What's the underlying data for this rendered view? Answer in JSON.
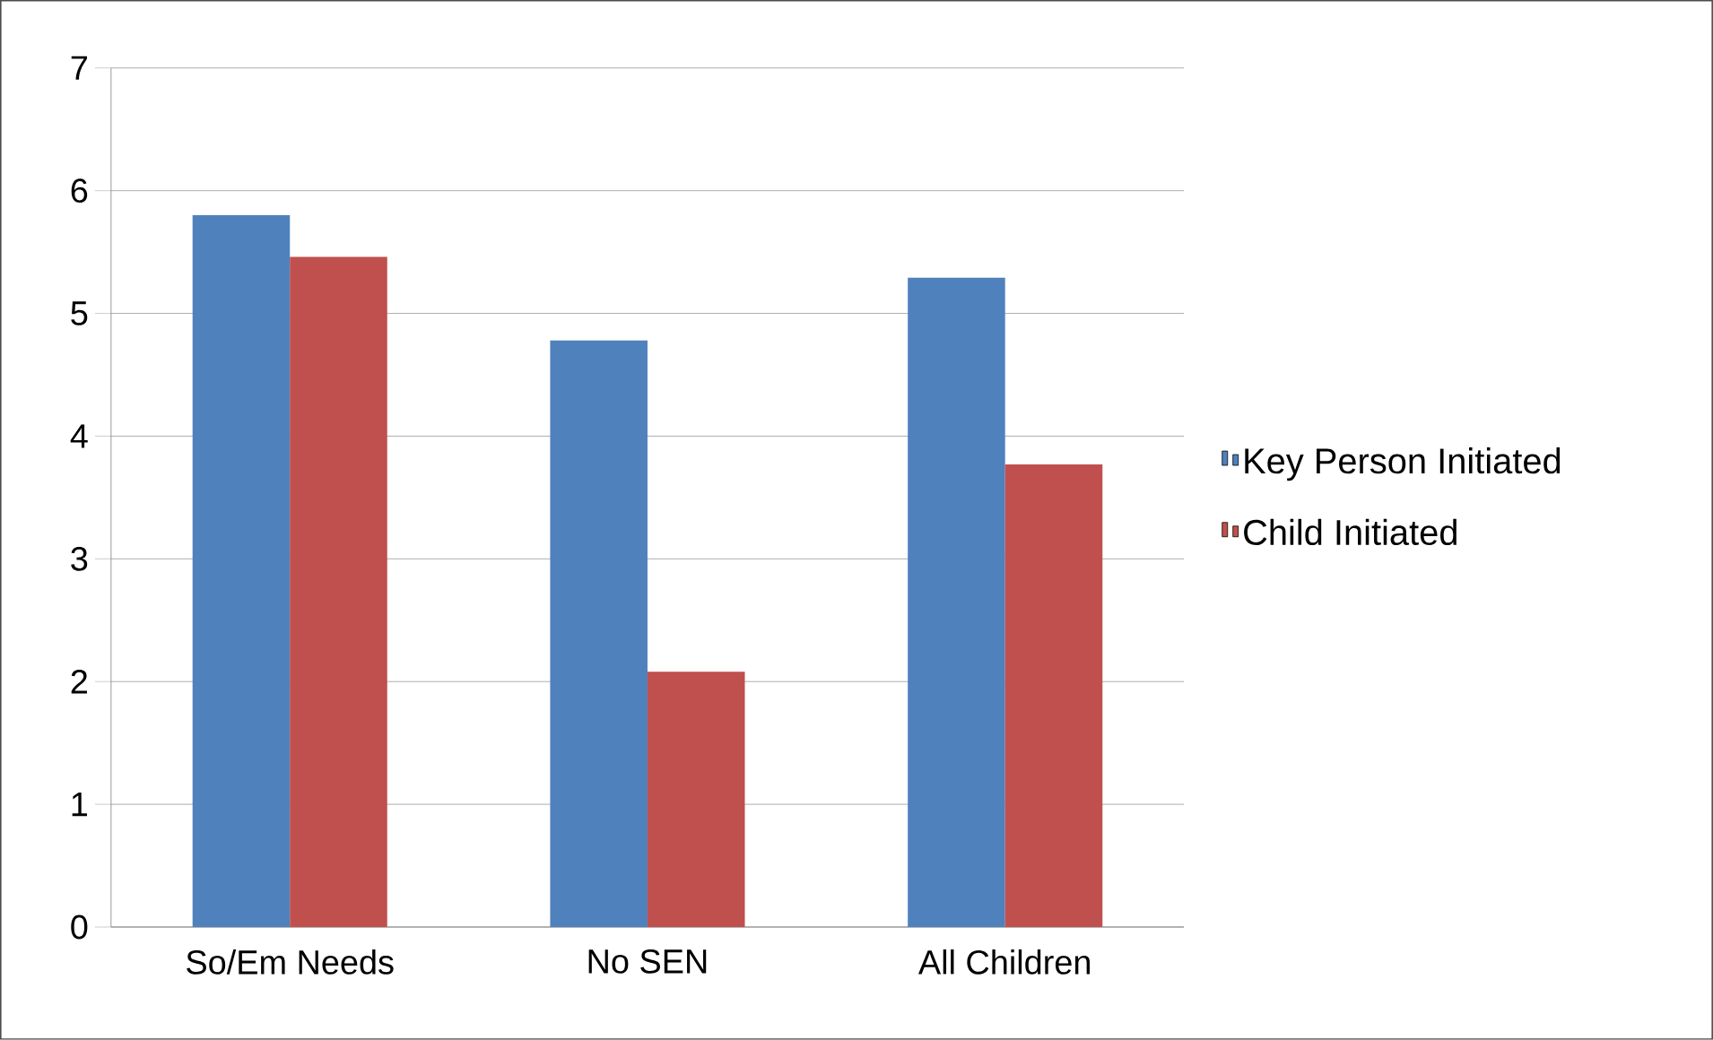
{
  "chart_data": {
    "type": "bar",
    "categories": [
      "So/Em Needs",
      "No SEN",
      "All Children"
    ],
    "series": [
      {
        "name": "Key Person Initiated",
        "color": "#4f81bd",
        "values": [
          5.8,
          4.78,
          5.29
        ]
      },
      {
        "name": "Child Initiated",
        "color": "#c0504d",
        "values": [
          5.46,
          2.08,
          3.77
        ]
      }
    ],
    "ylim": [
      0,
      7
    ],
    "yticks": [
      0,
      1,
      2,
      3,
      4,
      5,
      6,
      7
    ],
    "grid": "y",
    "legend": "right"
  }
}
